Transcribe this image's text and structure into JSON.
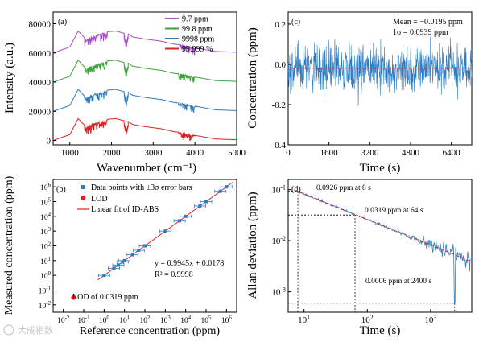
{
  "chart_data": [
    {
      "panel": "(a)",
      "type": "line",
      "xlabel": "Wavenumber (cm⁻¹)",
      "ylabel": "Intensity (a.u.)",
      "xlim": [
        600,
        5000
      ],
      "ylim": [
        -3000,
        88000
      ],
      "xticks": [
        1000,
        2000,
        3000,
        4000,
        5000
      ],
      "yticks": [
        0,
        20000,
        40000,
        60000,
        80000
      ],
      "legend_position": "top-right",
      "series": [
        {
          "name": "9.7 ppm",
          "color": "#a64dc9",
          "offset": 60000,
          "x": [
            600,
            1000,
            1200,
            1400,
            1500,
            1700,
            1900,
            2100,
            2300,
            2350,
            2400,
            2500,
            2800,
            3200,
            3500,
            3700,
            3800,
            4000,
            4200,
            4500,
            5000
          ],
          "y": [
            60000,
            64000,
            75000,
            69000,
            71000,
            73000,
            74500,
            75000,
            73500,
            67000,
            73000,
            71000,
            69500,
            68000,
            66000,
            65500,
            65000,
            63500,
            62500,
            61000,
            60500
          ]
        },
        {
          "name": "99.8 ppm",
          "color": "#3aa33a",
          "offset": 40000,
          "x": [
            600,
            1000,
            1200,
            1400,
            1500,
            1700,
            1900,
            2100,
            2300,
            2350,
            2400,
            2500,
            2800,
            3200,
            3500,
            3700,
            3800,
            4000,
            4200,
            4500,
            5000
          ],
          "y": [
            40000,
            44000,
            55000,
            49000,
            51000,
            53000,
            54500,
            55000,
            53500,
            47000,
            53000,
            51000,
            49500,
            48000,
            46000,
            45500,
            45000,
            43500,
            42500,
            41000,
            40500
          ]
        },
        {
          "name": "9998 ppm",
          "color": "#2e7bc0",
          "offset": 20000,
          "x": [
            600,
            1000,
            1200,
            1400,
            1500,
            1700,
            1900,
            2100,
            2300,
            2350,
            2400,
            2500,
            2800,
            3200,
            3500,
            3700,
            3800,
            4000,
            4200,
            4500,
            5000
          ],
          "y": [
            20000,
            24000,
            35000,
            29000,
            31000,
            33000,
            34500,
            35000,
            33500,
            27000,
            33000,
            31000,
            29500,
            28000,
            26000,
            25500,
            25000,
            23500,
            22500,
            21000,
            20500
          ]
        },
        {
          "name": "99.999 %",
          "color": "#e02020",
          "offset": 0,
          "x": [
            600,
            1000,
            1200,
            1400,
            1500,
            1700,
            1900,
            2100,
            2300,
            2350,
            2400,
            2500,
            2800,
            3200,
            3500,
            3700,
            3800,
            4000,
            4200,
            4500,
            5000
          ],
          "y": [
            0,
            4000,
            15000,
            9000,
            11000,
            13000,
            14500,
            15000,
            13500,
            7000,
            13000,
            11000,
            9500,
            8000,
            6000,
            5500,
            5000,
            3500,
            2500,
            1000,
            500
          ]
        }
      ]
    },
    {
      "panel": "(c)",
      "type": "line",
      "xlabel": "Time (s)",
      "ylabel": "Concentration (ppm)",
      "xlim": [
        0,
        7200
      ],
      "ylim": [
        -0.4,
        0.26
      ],
      "xticks": [
        0,
        1600,
        3200,
        4800,
        6400
      ],
      "yticks": [
        -0.4,
        -0.2,
        0.0,
        0.2
      ],
      "ytick_labels": [
        "-0.4",
        "-0.2",
        "0.0",
        "0.2"
      ],
      "annotations": [
        "Mean = −0.0195 ppm",
        "1σ = 0.0939 ppm"
      ],
      "mean": -0.0195,
      "sigma": 0.0939,
      "series": [
        {
          "color": "#2e7bc0"
        }
      ]
    },
    {
      "panel": "(b)",
      "type": "scatter",
      "xlabel": "Reference concentration (ppm)",
      "ylabel": "Measured concentration (ppm)",
      "xscale": "log",
      "yscale": "log",
      "xlim_log10": [
        -2.5,
        6.5
      ],
      "ylim_log10": [
        -2.5,
        6.5
      ],
      "xticks_exp": [
        -2,
        -1,
        0,
        1,
        2,
        3,
        4,
        5,
        6
      ],
      "yticks_exp": [
        -2,
        -1,
        0,
        1,
        2,
        3,
        4,
        5,
        6
      ],
      "legend_position": "top-left",
      "legend": [
        "Data points with ±3σ error bars",
        "LOD",
        "Linear fit of ID-ABS"
      ],
      "equation": "y = 0.9945x + 0.0178",
      "r2": "R² = 0.9998",
      "lod_label": "LOD of 0.0319 ppm",
      "points_x": [
        1,
        3,
        5,
        8,
        10,
        25,
        50,
        100,
        1000,
        5000,
        10000,
        50000,
        100000,
        500000,
        1000000
      ],
      "points_y": [
        1,
        3,
        5,
        8,
        10,
        25,
        50,
        100,
        1000,
        5000,
        10000,
        50000,
        100000,
        500000,
        1000000
      ],
      "lod": [
        0.0319,
        0.0319
      ],
      "fit_range": [
        0.5,
        2000000
      ]
    },
    {
      "panel": "(d)",
      "type": "line",
      "xlabel": "Time (s)",
      "ylabel": "Allan deviation (ppm)",
      "xscale": "log",
      "yscale": "log",
      "xlim_log10": [
        0.75,
        3.65
      ],
      "ylim_log10": [
        -3.4,
        -0.8
      ],
      "xticks_exp": [
        1,
        2,
        3
      ],
      "yticks_exp": [
        -3,
        -2,
        -1
      ],
      "annotations": [
        "0.0926 ppm at 8 s",
        "0.0319 ppm at 64 s",
        "0.0006 ppm at 2400 s"
      ],
      "markers": [
        [
          8,
          0.0926
        ],
        [
          64,
          0.0319
        ],
        [
          2400,
          0.0006
        ]
      ],
      "series": [
        {
          "color": "#2e7bc0"
        },
        {
          "color": "#e02020",
          "style": "dashed"
        }
      ]
    }
  ],
  "watermark": "大成指数"
}
